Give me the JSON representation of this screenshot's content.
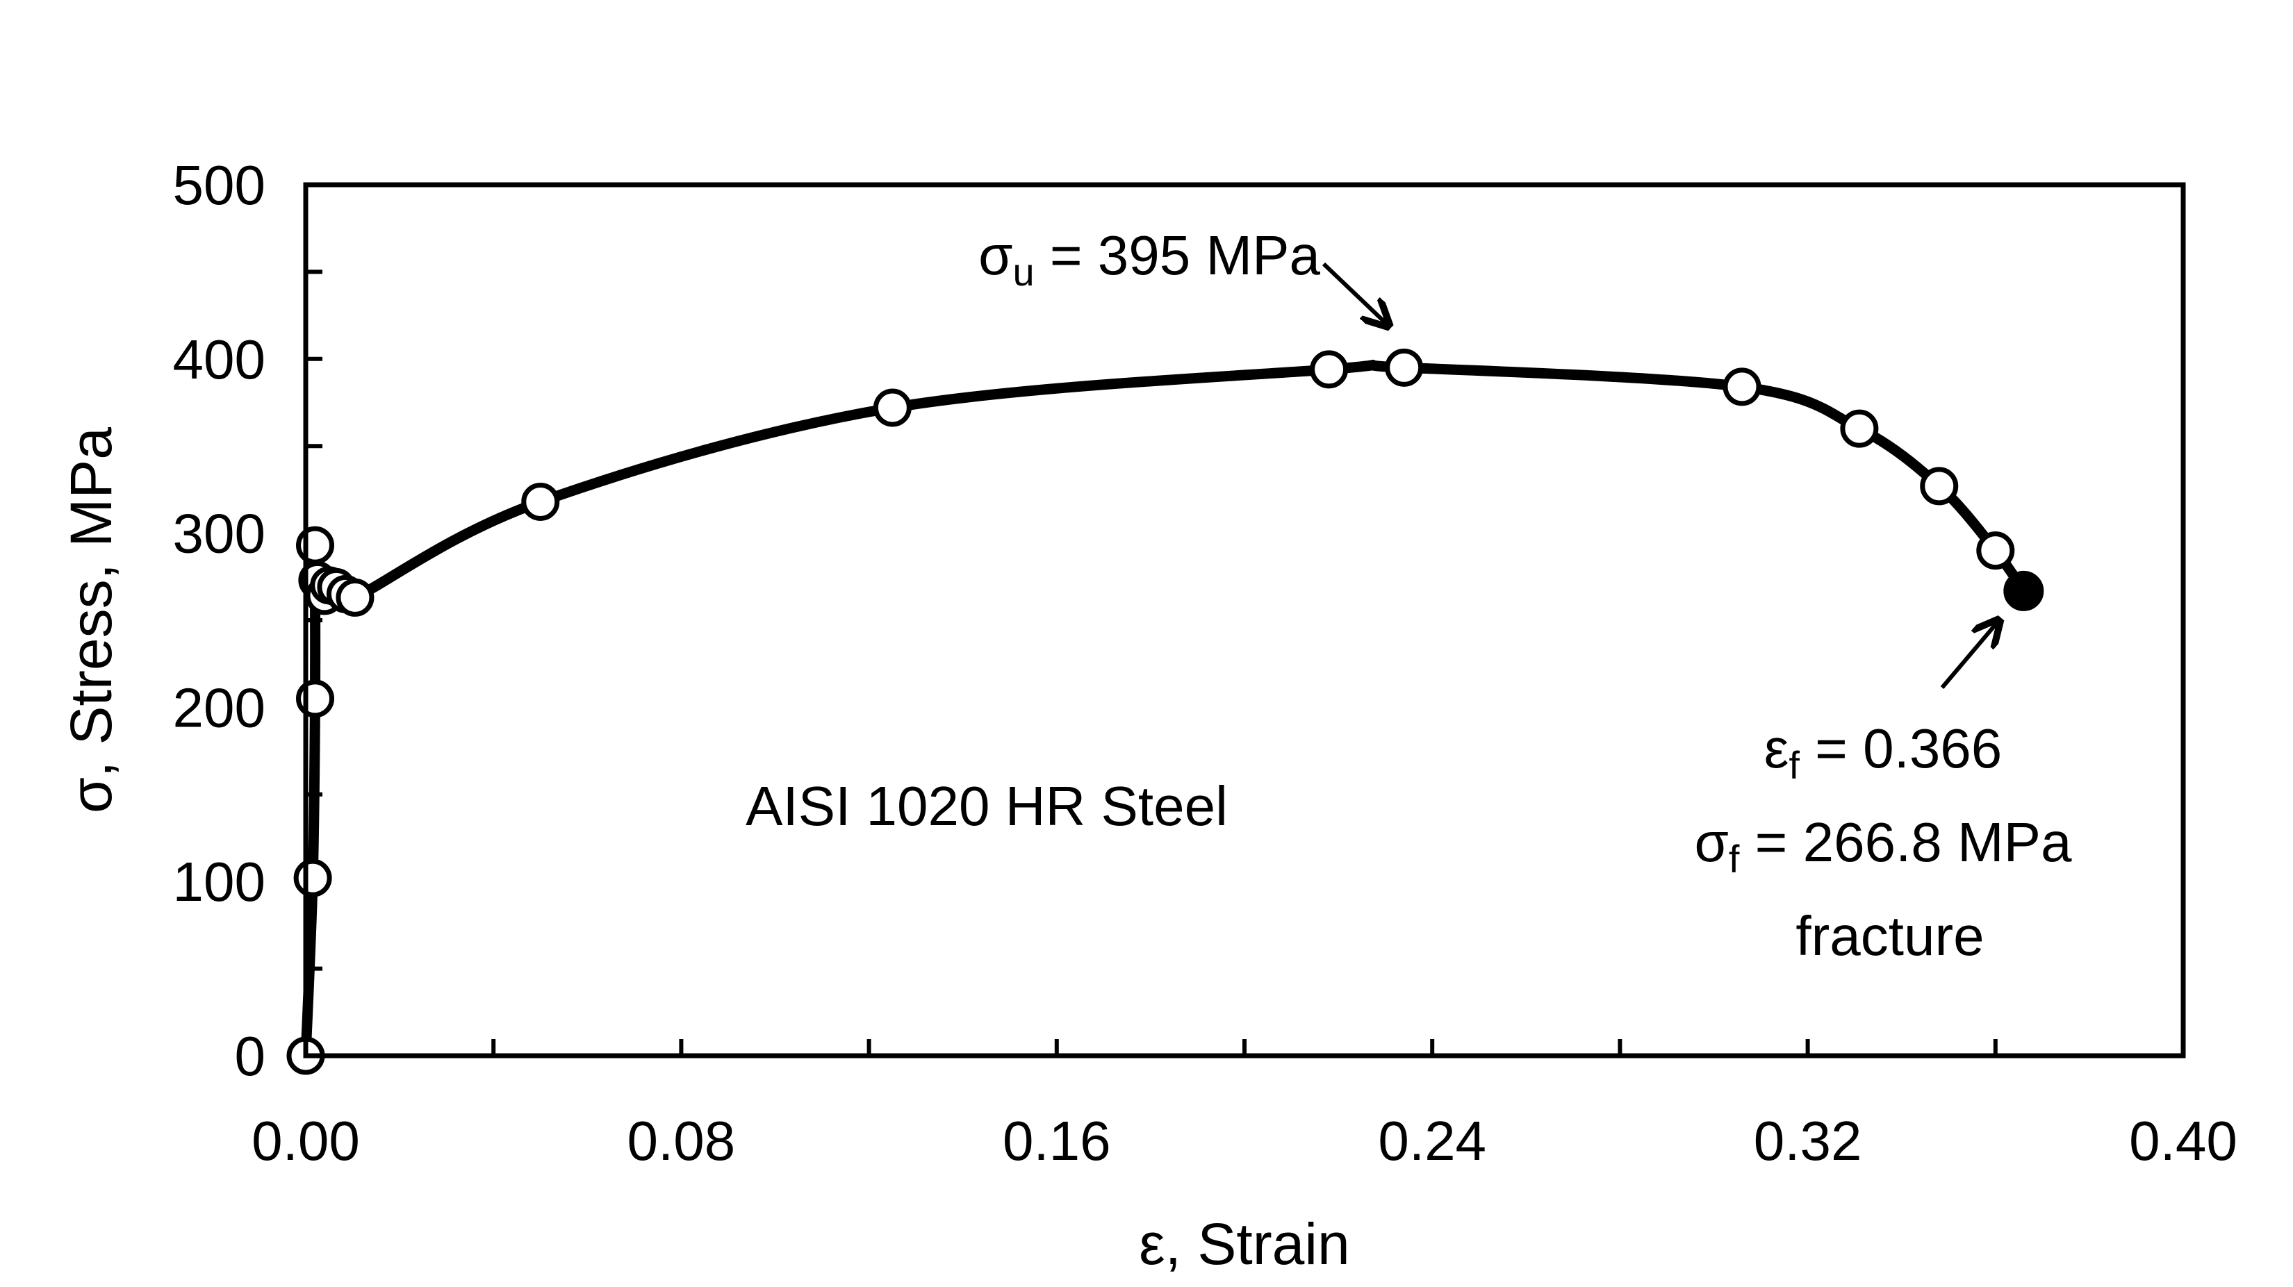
{
  "chart_data": {
    "type": "scatter",
    "title": "",
    "xlabel": "ε, Strain",
    "ylabel": "σ, Stress, MPa",
    "xlim": [
      0,
      0.4
    ],
    "ylim": [
      0,
      500
    ],
    "x_ticks": [
      "0.00",
      "0.08",
      "0.16",
      "0.24",
      "0.32",
      "0.40"
    ],
    "y_ticks": [
      "0",
      "100",
      "200",
      "300",
      "400",
      "500"
    ],
    "grid": false,
    "legend": "none",
    "series": [
      {
        "line": true,
        "markers": "open-circle",
        "points": [
          {
            "x": 0.0,
            "y": 0
          },
          {
            "x": 0.0015,
            "y": 102
          },
          {
            "x": 0.002,
            "y": 205
          },
          {
            "x": 0.002,
            "y": 293
          },
          {
            "x": 0.0025,
            "y": 273
          },
          {
            "x": 0.004,
            "y": 264
          },
          {
            "x": 0.005,
            "y": 270
          },
          {
            "x": 0.0065,
            "y": 269
          },
          {
            "x": 0.0085,
            "y": 265
          },
          {
            "x": 0.0105,
            "y": 263
          },
          {
            "x": 0.05,
            "y": 318
          },
          {
            "x": 0.125,
            "y": 372
          },
          {
            "x": 0.218,
            "y": 394
          },
          {
            "x": 0.234,
            "y": 395
          },
          {
            "x": 0.306,
            "y": 384
          },
          {
            "x": 0.331,
            "y": 360
          },
          {
            "x": 0.348,
            "y": 327
          },
          {
            "x": 0.36,
            "y": 290
          }
        ]
      },
      {
        "line": false,
        "markers": "filled-circle",
        "points": [
          {
            "x": 0.366,
            "y": 266.8
          }
        ]
      }
    ],
    "annotations": {
      "ultimate": {
        "symbol": "σ",
        "sub": "u",
        "text": " = 395 MPa",
        "target": {
          "x": 0.234,
          "y": 395
        }
      },
      "fracture": {
        "strain_symbol": "ε",
        "strain_sub": "f",
        "strain_text": " = 0.366",
        "stress_symbol": "σ",
        "stress_sub": "f",
        "stress_text": " = 266.8 MPa",
        "word": "fracture",
        "target": {
          "x": 0.366,
          "y": 266.8
        }
      },
      "material": "AISI 1020 HR Steel"
    }
  }
}
